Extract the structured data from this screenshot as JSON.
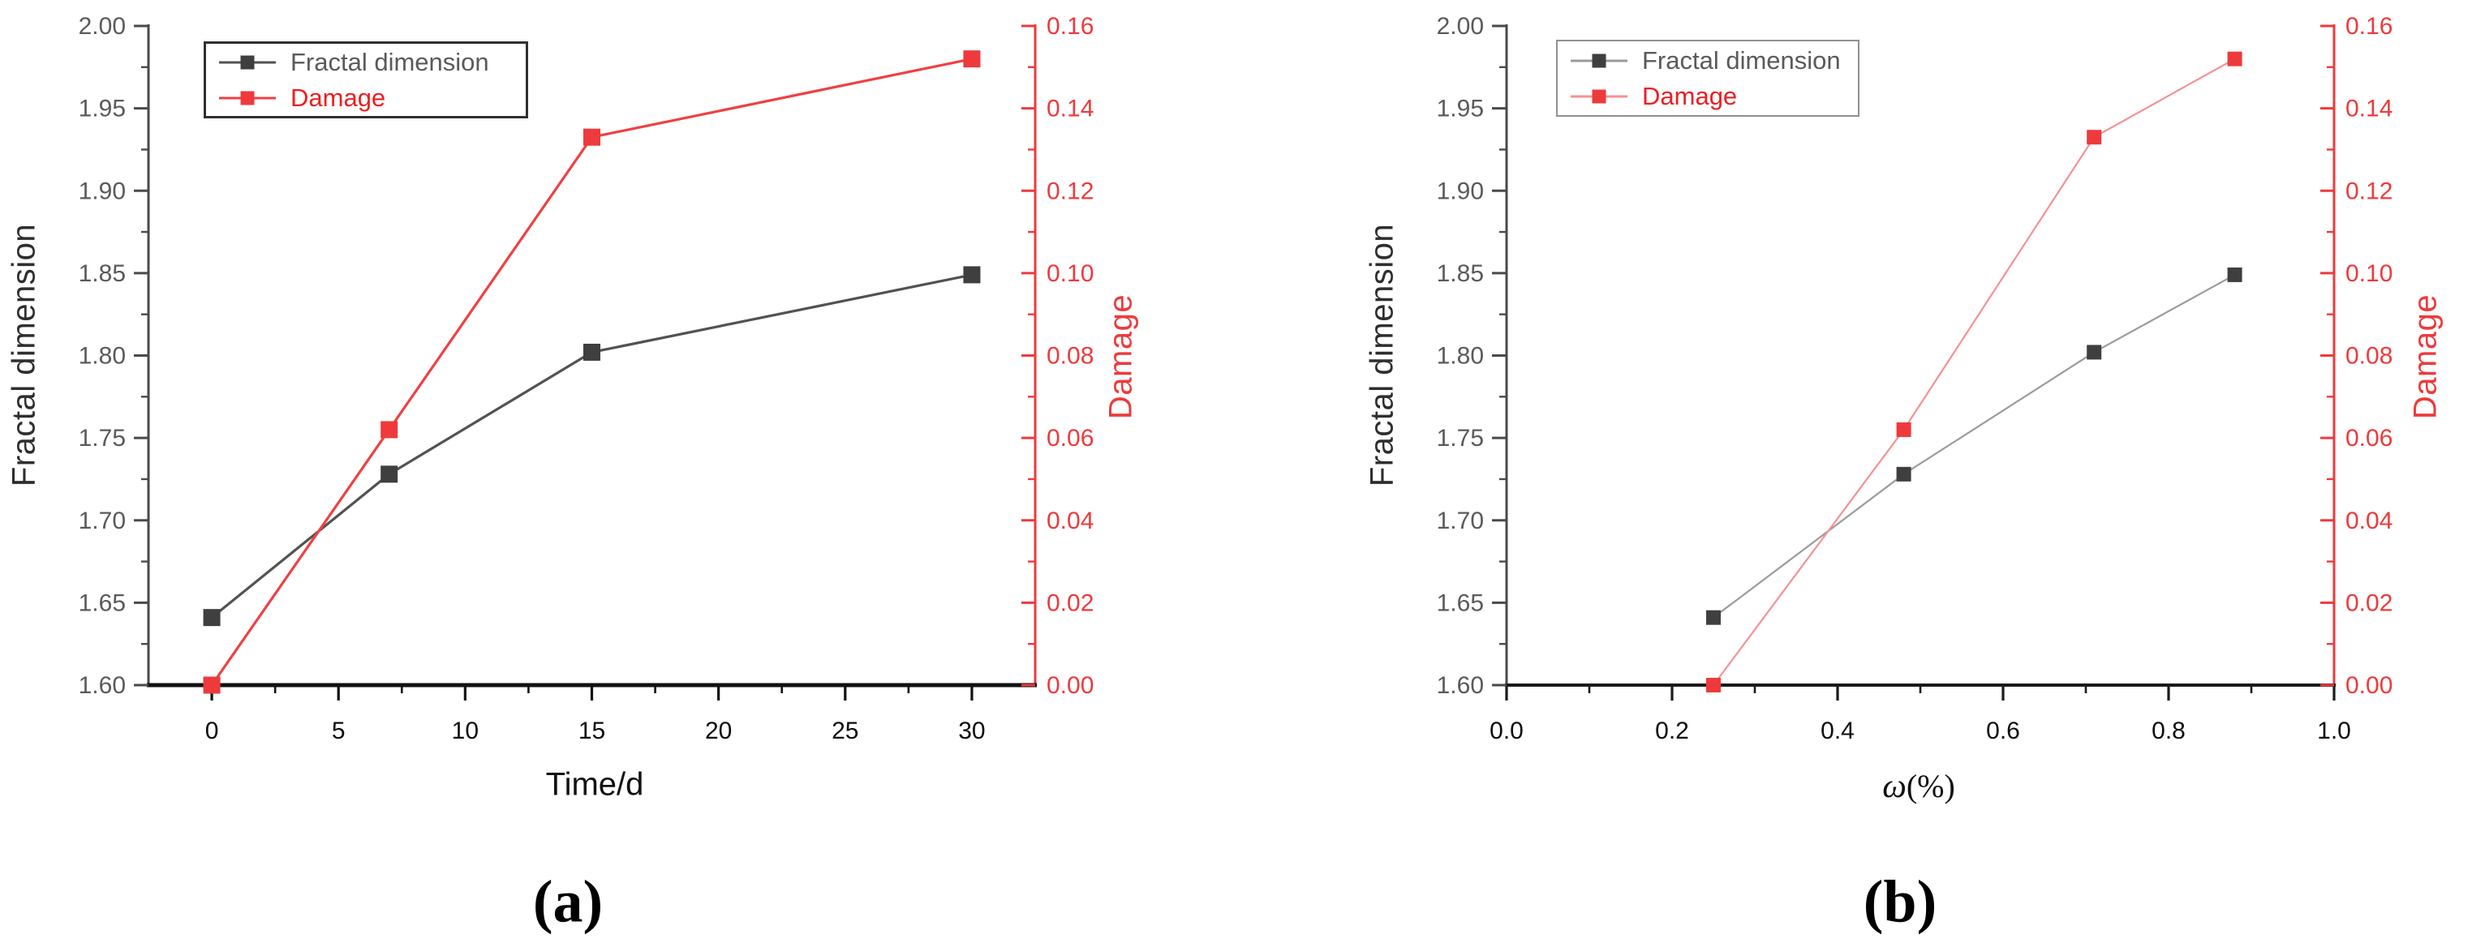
{
  "figure": {
    "background": "#ffffff",
    "captions": {
      "a": "(a)",
      "b": "(b)"
    }
  },
  "chart_data": [
    {
      "type": "line",
      "panel": "a",
      "xlabel": "Time/d",
      "ylabel_left": "Fractal dimension",
      "ylabel_right": "Damage",
      "x": [
        0,
        7,
        15,
        30
      ],
      "series": [
        {
          "name": "Fractal dimension",
          "axis": "left",
          "values": [
            1.641,
            1.728,
            1.802,
            1.849
          ],
          "marker_color": "#3f3f3f",
          "line_color": "#525252"
        },
        {
          "name": "Damage",
          "axis": "right",
          "values": [
            0.0,
            0.062,
            0.133,
            0.152
          ],
          "marker_color": "#ee3a3c",
          "line_color": "#ef4043"
        }
      ],
      "xlim": [
        -2.5,
        32.5
      ],
      "ylim_left": [
        1.6,
        2.0
      ],
      "ylim_right": [
        0.0,
        0.16
      ],
      "xticks": {
        "values": [
          0,
          5,
          10,
          15,
          20,
          25,
          30
        ],
        "labels": [
          "0",
          "5",
          "10",
          "15",
          "20",
          "25",
          "30"
        ]
      },
      "yticks_left": {
        "values": [
          1.6,
          1.65,
          1.7,
          1.75,
          1.8,
          1.85,
          1.9,
          1.95,
          2.0
        ],
        "labels": [
          "1.60",
          "1.65",
          "1.70",
          "1.75",
          "1.80",
          "1.85",
          "1.90",
          "1.95",
          "2.00"
        ]
      },
      "yticks_right": {
        "values": [
          0.0,
          0.02,
          0.04,
          0.06,
          0.08,
          0.1,
          0.12,
          0.14,
          0.16
        ],
        "labels": [
          "0.00",
          "0.02",
          "0.04",
          "0.06",
          "0.08",
          "0.10",
          "0.12",
          "0.14",
          "0.16"
        ]
      },
      "legend": {
        "position": "top-left",
        "border_color": "#2f2f2f",
        "entries": [
          "Fractal dimension",
          "Damage"
        ]
      },
      "grid": false,
      "colors": {
        "left_axis": "#4a4a4a",
        "bottom_axis": "#111111",
        "right_axis": "#ee3a3c",
        "left_tick_labels": "#5a5a5a",
        "x_tick_labels": "#0d0d0d",
        "right_tick_labels": "#ee3a3c"
      }
    },
    {
      "type": "line",
      "panel": "b",
      "xlabel": "ω(%)",
      "xlabel_symbol": "ω",
      "xlabel_unit": "(%)",
      "ylabel_left": "Fractal dimension",
      "ylabel_right": "Damage",
      "x": [
        0.25,
        0.48,
        0.71,
        0.88
      ],
      "series": [
        {
          "name": "Fractal dimension",
          "axis": "left",
          "values": [
            1.641,
            1.728,
            1.802,
            1.849
          ],
          "marker_color": "#3f3f3f",
          "line_color": "#9b9b9b"
        },
        {
          "name": "Damage",
          "axis": "right",
          "values": [
            0.0,
            0.062,
            0.133,
            0.152
          ],
          "marker_color": "#ee3a3c",
          "line_color": "#f59193"
        }
      ],
      "xlim": [
        0.0,
        1.0
      ],
      "ylim_left": [
        1.6,
        2.0
      ],
      "ylim_right": [
        0.0,
        0.16
      ],
      "xticks": {
        "values": [
          0.0,
          0.2,
          0.4,
          0.6,
          0.8,
          1.0
        ],
        "labels": [
          "0.0",
          "0.2",
          "0.4",
          "0.6",
          "0.8",
          "1.0"
        ]
      },
      "yticks_left": {
        "values": [
          1.6,
          1.65,
          1.7,
          1.75,
          1.8,
          1.85,
          1.9,
          1.95,
          2.0
        ],
        "labels": [
          "1.60",
          "1.65",
          "1.70",
          "1.75",
          "1.80",
          "1.85",
          "1.90",
          "1.95",
          "2.00"
        ]
      },
      "yticks_right": {
        "values": [
          0.0,
          0.02,
          0.04,
          0.06,
          0.08,
          0.1,
          0.12,
          0.14,
          0.16
        ],
        "labels": [
          "0.00",
          "0.02",
          "0.04",
          "0.06",
          "0.08",
          "0.10",
          "0.12",
          "0.14",
          "0.16"
        ]
      },
      "legend": {
        "position": "top-left",
        "border_color": "#909090",
        "entries": [
          "Fractal dimension",
          "Damage"
        ]
      },
      "grid": false,
      "colors": {
        "left_axis": "#4a4a4a",
        "bottom_axis": "#1a1a1a",
        "right_axis": "#ee3a3c",
        "left_tick_labels": "#5a5a5a",
        "x_tick_labels": "#0d0d0d",
        "right_tick_labels": "#ee3a3c"
      }
    }
  ]
}
